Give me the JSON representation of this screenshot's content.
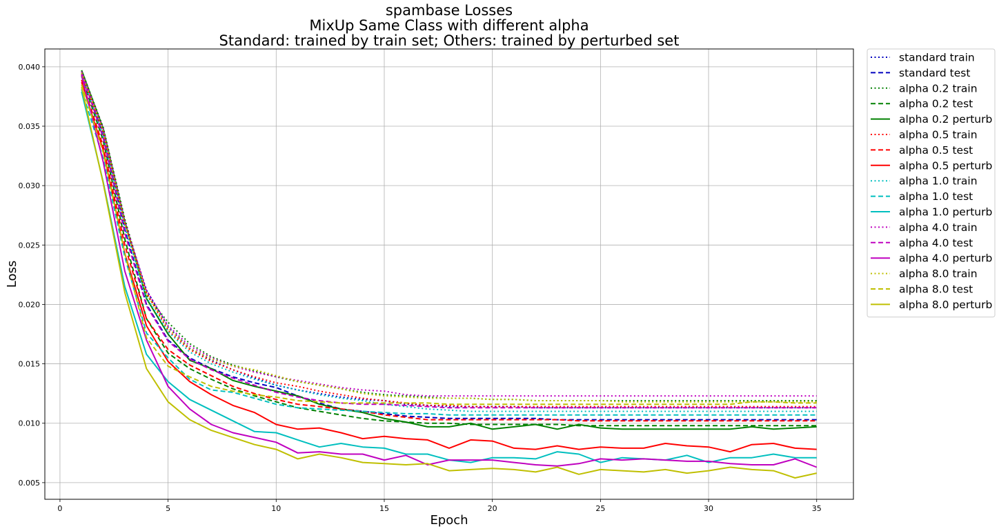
{
  "chart_data": {
    "type": "line",
    "title": [
      "spambase Losses",
      "MixUp Same Class with different alpha",
      "Standard: trained by train set; Others: trained by perturbed set"
    ],
    "xlabel": "Epoch",
    "ylabel": "Loss",
    "xlim": [
      -0.7,
      36.7
    ],
    "ylim": [
      0.0036,
      0.0415
    ],
    "xticks": [
      "0",
      "5",
      "10",
      "15",
      "20",
      "25",
      "30",
      "35"
    ],
    "yticks": [
      "0.005",
      "0.010",
      "0.015",
      "0.020",
      "0.025",
      "0.030",
      "0.035",
      "0.040"
    ],
    "grid": true,
    "legend_position": "outside-right",
    "x": [
      1,
      2,
      3,
      4,
      5,
      6,
      7,
      8,
      9,
      10,
      11,
      12,
      13,
      14,
      15,
      16,
      17,
      18,
      19,
      20,
      21,
      22,
      23,
      24,
      25,
      26,
      27,
      28,
      29,
      30,
      31,
      32,
      33,
      34,
      35
    ],
    "series": [
      {
        "name": "standard train",
        "color": "#0000bf",
        "style": "dotted",
        "values": [
          0.0395,
          0.0345,
          0.0268,
          0.0212,
          0.0181,
          0.0163,
          0.0153,
          0.0145,
          0.0138,
          0.0132,
          0.0128,
          0.0125,
          0.0122,
          0.012,
          0.0119,
          0.0116,
          0.0115,
          0.0114,
          0.0114,
          0.0114,
          0.0114,
          0.0113,
          0.0113,
          0.0113,
          0.0113,
          0.0113,
          0.0113,
          0.0113,
          0.0113,
          0.0113,
          0.0113,
          0.0113,
          0.0113,
          0.0113,
          0.0113
        ]
      },
      {
        "name": "standard test",
        "color": "#0000bf",
        "style": "dashed",
        "values": [
          0.0394,
          0.0343,
          0.0263,
          0.02,
          0.017,
          0.0155,
          0.0146,
          0.0139,
          0.0134,
          0.013,
          0.0123,
          0.0117,
          0.0112,
          0.011,
          0.0108,
          0.0106,
          0.0105,
          0.0104,
          0.0104,
          0.0104,
          0.0104,
          0.0104,
          0.0103,
          0.0103,
          0.0103,
          0.0103,
          0.0103,
          0.0103,
          0.0103,
          0.0103,
          0.0103,
          0.0103,
          0.0103,
          0.0103,
          0.0103
        ]
      },
      {
        "name": "alpha 0.2 train",
        "color": "#008000",
        "style": "dotted",
        "values": [
          0.0397,
          0.0349,
          0.0272,
          0.0208,
          0.0185,
          0.0167,
          0.0156,
          0.0149,
          0.0144,
          0.0139,
          0.0135,
          0.0132,
          0.0129,
          0.0126,
          0.0124,
          0.0123,
          0.0122,
          0.0121,
          0.0121,
          0.012,
          0.012,
          0.0119,
          0.0119,
          0.0119,
          0.0119,
          0.0119,
          0.0119,
          0.0119,
          0.0119,
          0.0119,
          0.0119,
          0.0119,
          0.0119,
          0.0119,
          0.0119
        ]
      },
      {
        "name": "alpha 0.2 test",
        "color": "#008000",
        "style": "dashed",
        "values": [
          0.0392,
          0.0338,
          0.0255,
          0.0188,
          0.0159,
          0.0146,
          0.0137,
          0.0129,
          0.0123,
          0.0118,
          0.0113,
          0.011,
          0.0107,
          0.0104,
          0.0102,
          0.0101,
          0.01,
          0.01,
          0.0099,
          0.0099,
          0.0099,
          0.0099,
          0.0099,
          0.0098,
          0.0098,
          0.0098,
          0.0098,
          0.0098,
          0.0098,
          0.0098,
          0.0098,
          0.0098,
          0.0098,
          0.0098,
          0.0098
        ]
      },
      {
        "name": "alpha 0.2 perturb",
        "color": "#008000",
        "style": "solid",
        "values": [
          0.0397,
          0.0348,
          0.027,
          0.0205,
          0.0175,
          0.0153,
          0.0146,
          0.0136,
          0.0131,
          0.0127,
          0.0123,
          0.0116,
          0.0112,
          0.0109,
          0.0104,
          0.0101,
          0.0097,
          0.0097,
          0.01,
          0.0095,
          0.0097,
          0.0099,
          0.0095,
          0.0099,
          0.0096,
          0.0095,
          0.0095,
          0.0095,
          0.0095,
          0.0095,
          0.0095,
          0.0097,
          0.0095,
          0.0096,
          0.0097
        ]
      },
      {
        "name": "alpha 0.5 train",
        "color": "#ff0000",
        "style": "dotted",
        "values": [
          0.0394,
          0.0345,
          0.0268,
          0.021,
          0.0178,
          0.0162,
          0.0152,
          0.0145,
          0.0139,
          0.0134,
          0.0131,
          0.0127,
          0.0124,
          0.0121,
          0.0119,
          0.0117,
          0.0115,
          0.0115,
          0.0114,
          0.0114,
          0.0114,
          0.0114,
          0.0114,
          0.0114,
          0.0114,
          0.0114,
          0.0114,
          0.0114,
          0.0114,
          0.0114,
          0.0114,
          0.0114,
          0.0114,
          0.0114,
          0.0114
        ]
      },
      {
        "name": "alpha 0.5 test",
        "color": "#ff0000",
        "style": "dashed",
        "values": [
          0.0389,
          0.0333,
          0.025,
          0.0188,
          0.0162,
          0.0149,
          0.014,
          0.0131,
          0.0125,
          0.012,
          0.0116,
          0.0114,
          0.0112,
          0.011,
          0.0107,
          0.0105,
          0.0103,
          0.0103,
          0.0103,
          0.0103,
          0.0103,
          0.0103,
          0.0103,
          0.0102,
          0.0102,
          0.0102,
          0.0102,
          0.0102,
          0.0102,
          0.0102,
          0.0102,
          0.0102,
          0.0102,
          0.0102,
          0.0102
        ]
      },
      {
        "name": "alpha 0.5 perturb",
        "color": "#ff0000",
        "style": "solid",
        "values": [
          0.0387,
          0.033,
          0.0243,
          0.0182,
          0.0152,
          0.0135,
          0.0124,
          0.0115,
          0.0109,
          0.0099,
          0.0095,
          0.0096,
          0.0092,
          0.0087,
          0.0089,
          0.0087,
          0.0086,
          0.0079,
          0.0086,
          0.0085,
          0.0079,
          0.0078,
          0.0081,
          0.0078,
          0.008,
          0.0079,
          0.0079,
          0.0083,
          0.0081,
          0.008,
          0.0076,
          0.0082,
          0.0083,
          0.0079,
          0.0078
        ]
      },
      {
        "name": "alpha 1.0 train",
        "color": "#00bfbf",
        "style": "dotted",
        "values": [
          0.0393,
          0.0342,
          0.0265,
          0.0206,
          0.0177,
          0.016,
          0.015,
          0.0143,
          0.0137,
          0.0132,
          0.0128,
          0.0124,
          0.0121,
          0.0119,
          0.0116,
          0.0114,
          0.0112,
          0.0111,
          0.011,
          0.011,
          0.011,
          0.011,
          0.011,
          0.011,
          0.011,
          0.011,
          0.011,
          0.011,
          0.011,
          0.011,
          0.011,
          0.011,
          0.011,
          0.011,
          0.011
        ]
      },
      {
        "name": "alpha 1.0 test",
        "color": "#00bfbf",
        "style": "dashed",
        "values": [
          0.0381,
          0.0323,
          0.024,
          0.0176,
          0.0155,
          0.0137,
          0.0128,
          0.0126,
          0.0121,
          0.0116,
          0.0113,
          0.0112,
          0.0111,
          0.011,
          0.0109,
          0.0108,
          0.0108,
          0.0107,
          0.0107,
          0.0107,
          0.0107,
          0.0107,
          0.0107,
          0.0107,
          0.0107,
          0.0107,
          0.0107,
          0.0107,
          0.0107,
          0.0107,
          0.0107,
          0.0107,
          0.0107,
          0.0107,
          0.0107
        ]
      },
      {
        "name": "alpha 1.0 perturb",
        "color": "#00bfbf",
        "style": "solid",
        "values": [
          0.0379,
          0.0303,
          0.0215,
          0.0158,
          0.0135,
          0.012,
          0.0111,
          0.0102,
          0.0093,
          0.0092,
          0.0086,
          0.008,
          0.0083,
          0.008,
          0.0079,
          0.0074,
          0.0074,
          0.0069,
          0.0067,
          0.0071,
          0.0071,
          0.007,
          0.0076,
          0.0074,
          0.0067,
          0.0071,
          0.007,
          0.0069,
          0.0073,
          0.0067,
          0.0071,
          0.0071,
          0.0074,
          0.0071,
          0.0071
        ]
      },
      {
        "name": "alpha 4.0 train",
        "color": "#bf00bf",
        "style": "dotted",
        "values": [
          0.0396,
          0.0348,
          0.027,
          0.0212,
          0.0182,
          0.0165,
          0.0155,
          0.0148,
          0.0143,
          0.0139,
          0.0136,
          0.0133,
          0.013,
          0.0128,
          0.0127,
          0.0124,
          0.0123,
          0.0123,
          0.0123,
          0.0123,
          0.0123,
          0.0123,
          0.0123,
          0.0123,
          0.0123,
          0.0123,
          0.0123,
          0.0123,
          0.0123,
          0.0123,
          0.0123,
          0.0123,
          0.0123,
          0.0123,
          0.0123
        ]
      },
      {
        "name": "alpha 4.0 test",
        "color": "#bf00bf",
        "style": "dashed",
        "values": [
          0.0395,
          0.034,
          0.026,
          0.0199,
          0.0169,
          0.0154,
          0.0145,
          0.0138,
          0.0132,
          0.0126,
          0.0122,
          0.0119,
          0.0117,
          0.0116,
          0.0116,
          0.0115,
          0.0114,
          0.0113,
          0.0113,
          0.0113,
          0.0113,
          0.0113,
          0.0113,
          0.0113,
          0.0113,
          0.0113,
          0.0113,
          0.0113,
          0.0113,
          0.0113,
          0.0113,
          0.0113,
          0.0113,
          0.0113,
          0.0113
        ]
      },
      {
        "name": "alpha 4.0 perturb",
        "color": "#bf00bf",
        "style": "solid",
        "values": [
          0.0393,
          0.032,
          0.0228,
          0.017,
          0.0131,
          0.0112,
          0.0099,
          0.0092,
          0.0088,
          0.0084,
          0.0075,
          0.0076,
          0.0074,
          0.0074,
          0.0069,
          0.0073,
          0.0065,
          0.0069,
          0.0069,
          0.0069,
          0.0067,
          0.0065,
          0.0064,
          0.0066,
          0.007,
          0.0069,
          0.007,
          0.0069,
          0.0068,
          0.0068,
          0.0066,
          0.0065,
          0.0065,
          0.007,
          0.0063
        ]
      },
      {
        "name": "alpha 8.0 train",
        "color": "#bfbf00",
        "style": "dotted",
        "values": [
          0.0395,
          0.0346,
          0.0268,
          0.0209,
          0.018,
          0.0163,
          0.0154,
          0.0148,
          0.0145,
          0.014,
          0.0135,
          0.0132,
          0.0129,
          0.0125,
          0.0123,
          0.0122,
          0.0121,
          0.0121,
          0.0121,
          0.012,
          0.012,
          0.0119,
          0.0119,
          0.0119,
          0.0119,
          0.0118,
          0.0118,
          0.0118,
          0.0118,
          0.0118,
          0.0118,
          0.0118,
          0.0118,
          0.0118,
          0.0118
        ]
      },
      {
        "name": "alpha 8.0 test",
        "color": "#bfbf00",
        "style": "dashed",
        "values": [
          0.0385,
          0.0328,
          0.0243,
          0.0172,
          0.0148,
          0.0139,
          0.0131,
          0.0127,
          0.0124,
          0.0122,
          0.0119,
          0.0118,
          0.0117,
          0.0117,
          0.0117,
          0.0117,
          0.0117,
          0.0116,
          0.0116,
          0.0116,
          0.0116,
          0.0116,
          0.0116,
          0.0116,
          0.0116,
          0.0116,
          0.0116,
          0.0116,
          0.0116,
          0.0116,
          0.0116,
          0.0118,
          0.0118,
          0.0117,
          0.0117
        ]
      },
      {
        "name": "alpha 8.0 perturb",
        "color": "#bfbf00",
        "style": "solid",
        "values": [
          0.0383,
          0.0302,
          0.021,
          0.0146,
          0.0118,
          0.0103,
          0.0094,
          0.0088,
          0.0082,
          0.0078,
          0.007,
          0.0074,
          0.0071,
          0.0067,
          0.0066,
          0.0065,
          0.0066,
          0.006,
          0.0061,
          0.0062,
          0.0061,
          0.0059,
          0.0063,
          0.0057,
          0.0061,
          0.006,
          0.0059,
          0.0061,
          0.0058,
          0.006,
          0.0063,
          0.0061,
          0.006,
          0.0054,
          0.0058
        ]
      }
    ]
  }
}
